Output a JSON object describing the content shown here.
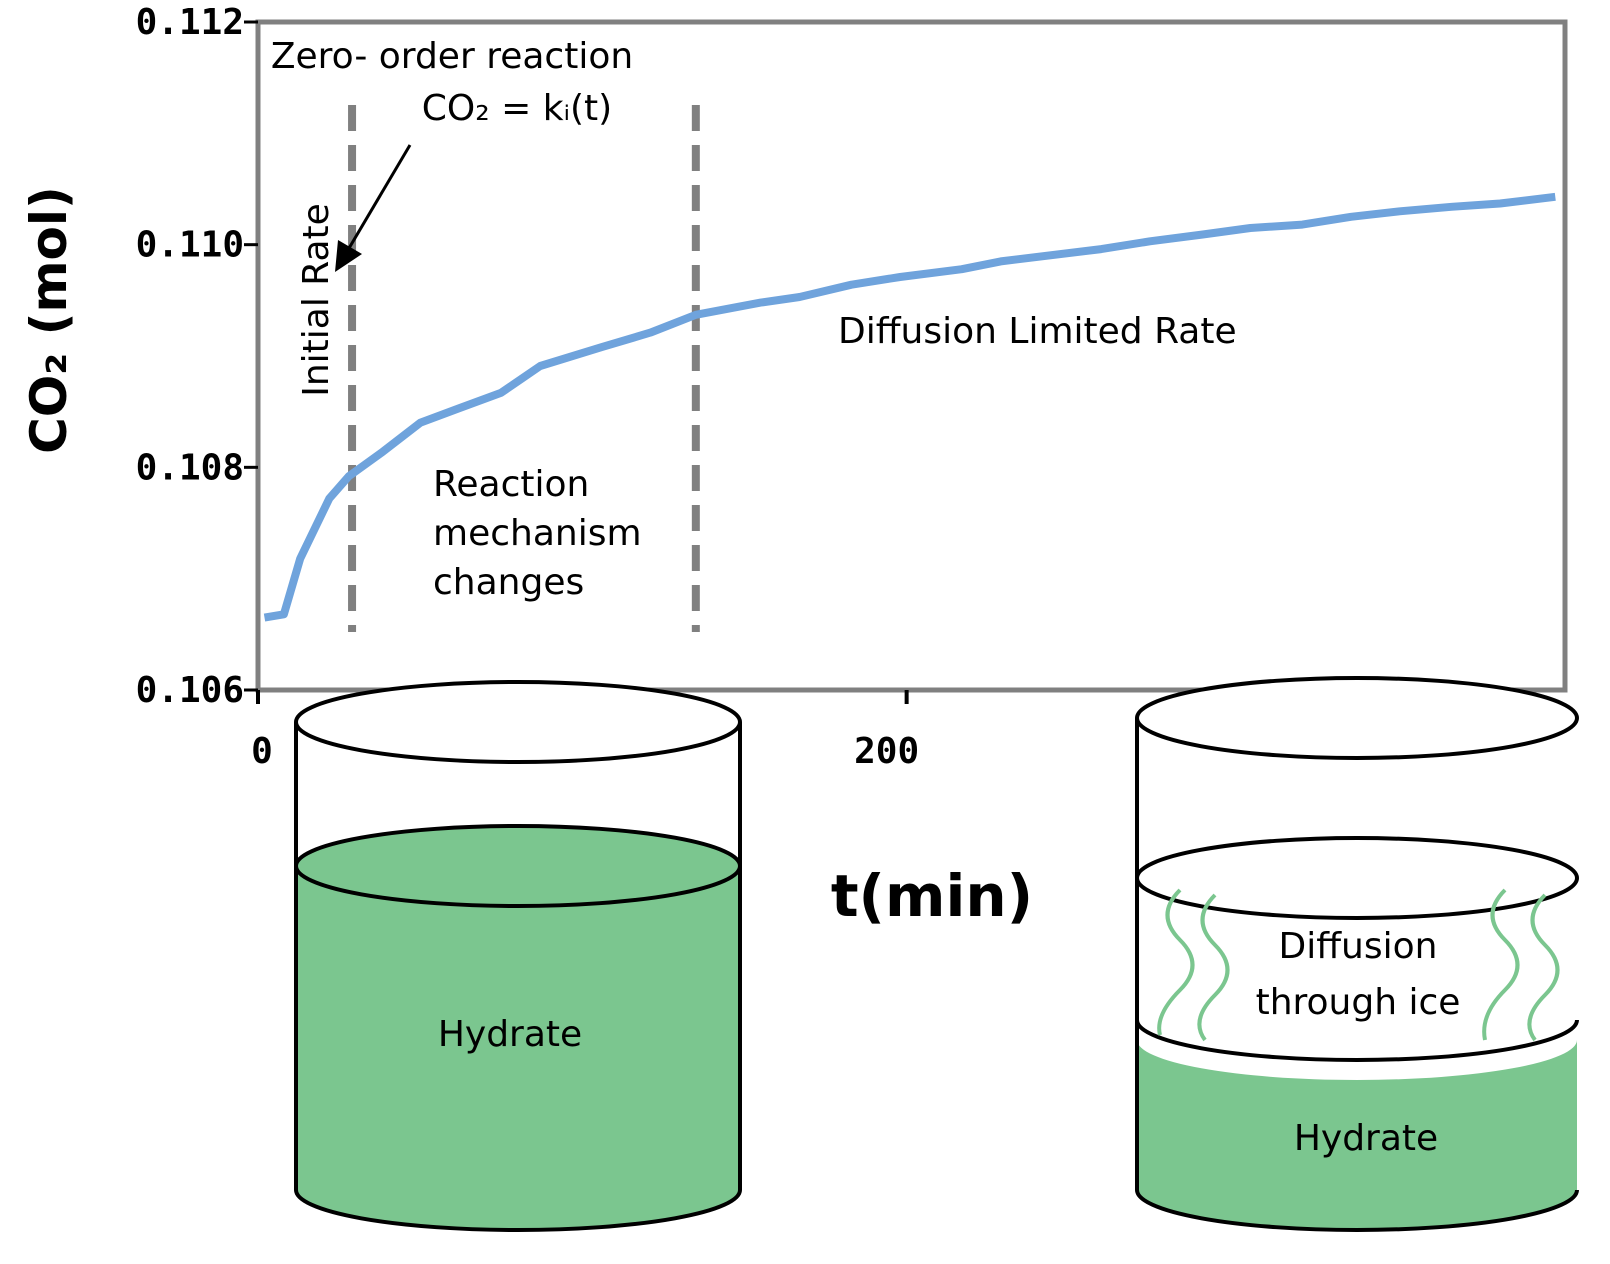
{
  "chart_data": {
    "type": "line",
    "xlabel": "t(min)",
    "ylabel": "CO₂ (mol)",
    "x": [
      2,
      8,
      13,
      22,
      28,
      38,
      50,
      62,
      75,
      87,
      106,
      121,
      135,
      155,
      167,
      183,
      198,
      217,
      229,
      260,
      275,
      291,
      306,
      322,
      337,
      352,
      368,
      383,
      400
    ],
    "values": [
      0.10665,
      0.10668,
      0.10718,
      0.10772,
      0.10792,
      0.10813,
      0.1084,
      0.10853,
      0.10867,
      0.10891,
      0.10908,
      0.10921,
      0.10937,
      0.10948,
      0.10953,
      0.10964,
      0.10971,
      0.10978,
      0.10985,
      0.10996,
      0.11003,
      0.11009,
      0.11015,
      0.11018,
      0.11025,
      0.1103,
      0.11034,
      0.11037,
      0.11043
    ],
    "color": "#6fa3dc",
    "xlim": [
      0,
      403
    ],
    "xticks": [
      0,
      200
    ],
    "ylim": [
      0.106,
      0.112
    ],
    "yticks": [
      0.106,
      0.108,
      {
        "value": 0.11,
        "label": "0.110"
      },
      0.112
    ],
    "vlines": [
      29,
      135
    ],
    "annotations": {
      "zero_order": "Zero- order reaction",
      "equation": "CO₂ = kᵢ(t)",
      "initial_rate": "Initial Rate",
      "mechanism": [
        "Reaction",
        "mechanism",
        "changes"
      ],
      "diffusion_rate": "Diffusion Limited Rate"
    }
  },
  "diagram": {
    "left_label": "Hydrate",
    "right_upper_label": [
      "Diffusion",
      "through ice"
    ],
    "right_lower_label": "Hydrate"
  }
}
